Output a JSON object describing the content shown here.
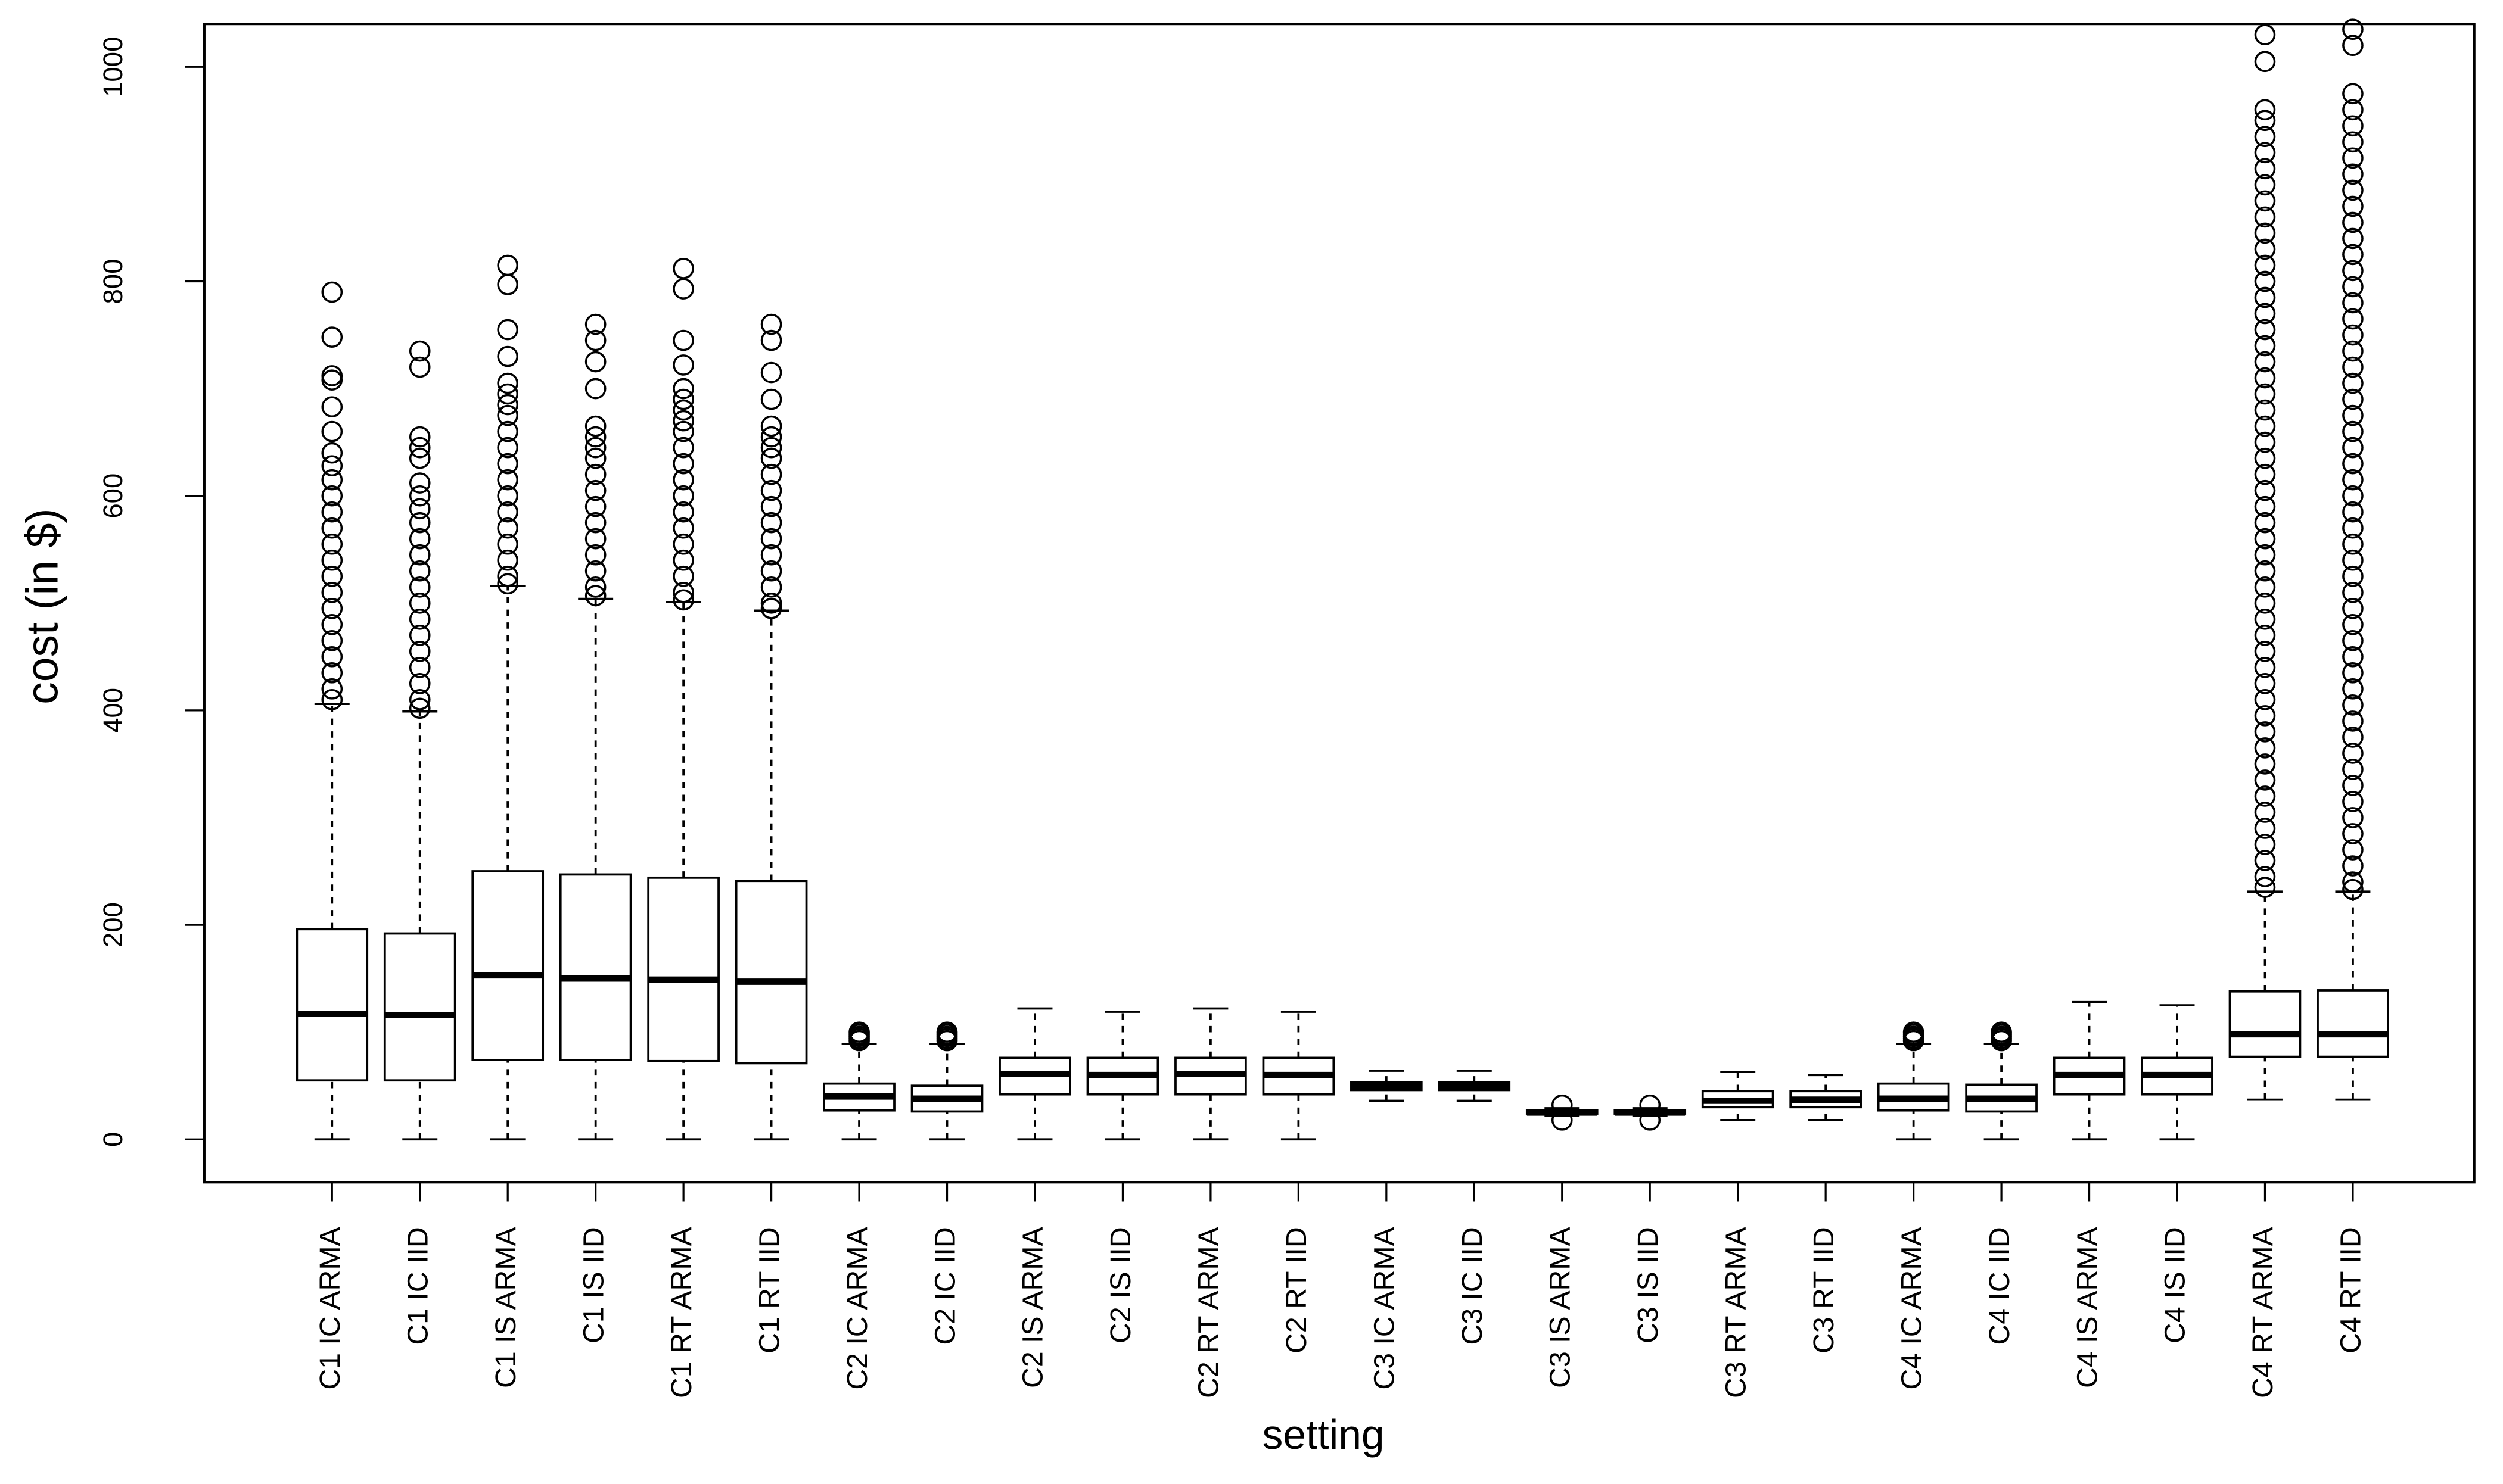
{
  "chart_data": {
    "type": "boxplot",
    "x_label": "setting",
    "y_label": "cost (in $)",
    "categories": [
      "C1 IC ARMA",
      "C1 IC IID",
      "C1 IS ARMA",
      "C1 IS IID",
      "C1 RT ARMA",
      "C1 RT IID",
      "C2 IC ARMA",
      "C2 IC IID",
      "C2 IS ARMA",
      "C2 IS IID",
      "C2 RT ARMA",
      "C2 RT IID",
      "C3 IC ARMA",
      "C3 IC IID",
      "C3 IS ARMA",
      "C3 IS IID",
      "C3 RT ARMA",
      "C3 RT IID",
      "C4 IC ARMA",
      "C4 IC IID",
      "C4 IS ARMA",
      "C4 IS IID",
      "C4 RT ARMA",
      "C4 RT IID"
    ],
    "boxes": [
      {
        "whislo": 0,
        "q1": 55,
        "med": 117,
        "q3": 196,
        "whishi": 406,
        "fliers": [
          790,
          748,
          712,
          708,
          683,
          660,
          640,
          628,
          615,
          600,
          585,
          570,
          555,
          540,
          525,
          510,
          495,
          480,
          465,
          450,
          435,
          420,
          410
        ]
      },
      {
        "whislo": 0,
        "q1": 55,
        "med": 116,
        "q3": 192,
        "whishi": 399,
        "fliers": [
          735,
          720,
          655,
          645,
          635,
          612,
          600,
          588,
          575,
          560,
          545,
          530,
          515,
          500,
          485,
          470,
          455,
          440,
          425,
          410,
          402
        ]
      },
      {
        "whislo": 0,
        "q1": 74,
        "med": 153,
        "q3": 250,
        "whishi": 516,
        "fliers": [
          815,
          797,
          755,
          730,
          705,
          695,
          685,
          675,
          660,
          645,
          630,
          615,
          600,
          585,
          570,
          555,
          540,
          525,
          518
        ]
      },
      {
        "whislo": 0,
        "q1": 74,
        "med": 150,
        "q3": 247,
        "whishi": 504,
        "fliers": [
          760,
          745,
          725,
          700,
          665,
          655,
          645,
          635,
          620,
          605,
          590,
          575,
          560,
          545,
          530,
          515,
          507
        ]
      },
      {
        "whislo": 0,
        "q1": 73,
        "med": 149,
        "q3": 244,
        "whishi": 501,
        "fliers": [
          812,
          793,
          745,
          722,
          700,
          690,
          680,
          670,
          660,
          645,
          630,
          615,
          600,
          585,
          570,
          555,
          540,
          525,
          510,
          503
        ]
      },
      {
        "whislo": 0,
        "q1": 71,
        "med": 147,
        "q3": 241,
        "whishi": 493,
        "fliers": [
          760,
          745,
          715,
          690,
          665,
          655,
          645,
          635,
          620,
          605,
          590,
          575,
          560,
          545,
          530,
          515,
          500,
          495
        ]
      },
      {
        "whislo": 0,
        "q1": 27,
        "med": 40,
        "q3": 52,
        "whishi": 89,
        "fliers": [
          92,
          94,
          96,
          98,
          100
        ]
      },
      {
        "whislo": 0,
        "q1": 26,
        "med": 38,
        "q3": 50,
        "whishi": 89,
        "fliers": [
          92,
          94,
          96,
          98,
          100
        ]
      },
      {
        "whislo": 0,
        "q1": 42,
        "med": 61,
        "q3": 76,
        "whishi": 122,
        "fliers": []
      },
      {
        "whislo": 0,
        "q1": 42,
        "med": 60,
        "q3": 76,
        "whishi": 119,
        "fliers": []
      },
      {
        "whislo": 0,
        "q1": 42,
        "med": 61,
        "q3": 76,
        "whishi": 122,
        "fliers": []
      },
      {
        "whislo": 0,
        "q1": 42,
        "med": 60,
        "q3": 76,
        "whishi": 119,
        "fliers": []
      },
      {
        "whislo": 36,
        "q1": 46,
        "med": 50,
        "q3": 53,
        "whishi": 64,
        "fliers": []
      },
      {
        "whislo": 36,
        "q1": 46,
        "med": 50,
        "q3": 53,
        "whishi": 64,
        "fliers": []
      },
      {
        "whislo": 22,
        "q1": 24,
        "med": 25,
        "q3": 27,
        "whishi": 29,
        "fliers": [
          18,
          32
        ]
      },
      {
        "whislo": 22,
        "q1": 24,
        "med": 25,
        "q3": 27,
        "whishi": 29,
        "fliers": [
          18,
          32
        ]
      },
      {
        "whislo": 18,
        "q1": 30,
        "med": 36,
        "q3": 45,
        "whishi": 63,
        "fliers": []
      },
      {
        "whislo": 18,
        "q1": 30,
        "med": 37,
        "q3": 45,
        "whishi": 60,
        "fliers": []
      },
      {
        "whislo": 0,
        "q1": 27,
        "med": 38,
        "q3": 52,
        "whishi": 89,
        "fliers": [
          92,
          94,
          96,
          98,
          100
        ]
      },
      {
        "whislo": 0,
        "q1": 26,
        "med": 38,
        "q3": 51,
        "whishi": 89,
        "fliers": [
          92,
          94,
          96,
          98,
          100
        ]
      },
      {
        "whislo": 0,
        "q1": 42,
        "med": 60,
        "q3": 76,
        "whishi": 128,
        "fliers": []
      },
      {
        "whislo": 0,
        "q1": 42,
        "med": 60,
        "q3": 76,
        "whishi": 125,
        "fliers": []
      },
      {
        "whislo": 37,
        "q1": 77,
        "med": 98,
        "q3": 138,
        "whishi": 231,
        "fliers": [
          1030,
          1005,
          960,
          950,
          935,
          920,
          905,
          890,
          875,
          860,
          845,
          830,
          815,
          800,
          785,
          770,
          755,
          740,
          725,
          710,
          695,
          680,
          665,
          650,
          635,
          620,
          605,
          590,
          575,
          560,
          545,
          530,
          515,
          500,
          485,
          470,
          455,
          440,
          425,
          410,
          395,
          380,
          365,
          350,
          335,
          320,
          305,
          290,
          275,
          260,
          245,
          235
        ]
      },
      {
        "whislo": 37,
        "q1": 77,
        "med": 98,
        "q3": 139,
        "whishi": 231,
        "fliers": [
          1035,
          1020,
          975,
          960,
          945,
          930,
          915,
          900,
          885,
          870,
          855,
          840,
          825,
          810,
          795,
          780,
          765,
          750,
          735,
          720,
          705,
          690,
          675,
          660,
          645,
          630,
          615,
          600,
          585,
          570,
          555,
          540,
          525,
          510,
          495,
          480,
          465,
          450,
          435,
          420,
          405,
          390,
          375,
          360,
          345,
          330,
          315,
          300,
          285,
          270,
          255,
          240,
          233
        ]
      }
    ],
    "ylim": [
      -40,
      1040
    ],
    "yticks": [
      0,
      200,
      400,
      600,
      800,
      1000
    ]
  }
}
